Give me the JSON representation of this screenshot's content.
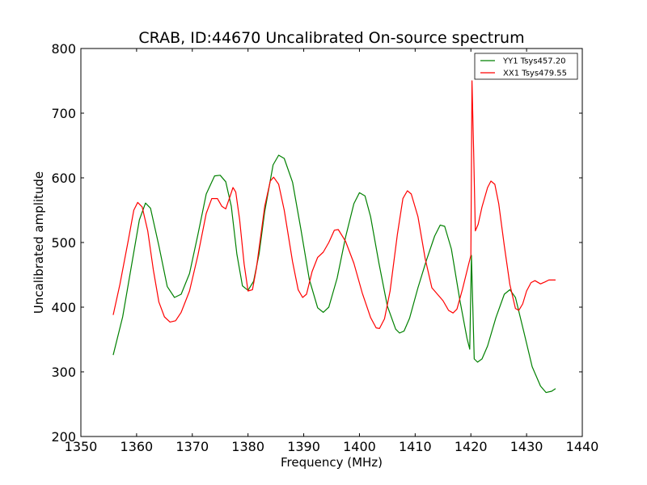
{
  "chart_data": {
    "type": "line",
    "title": "CRAB, ID:44670 Uncalibrated On-source spectrum",
    "xlabel": "Frequency (MHz)",
    "ylabel": "Uncalibrated amplitude",
    "xlim": [
      1350,
      1440
    ],
    "ylim": [
      200,
      800
    ],
    "xticks": [
      "1350",
      "1360",
      "1370",
      "1380",
      "1390",
      "1400",
      "1410",
      "1420",
      "1430",
      "1440"
    ],
    "yticks": [
      "200",
      "300",
      "400",
      "500",
      "600",
      "700",
      "800"
    ],
    "grid": false,
    "legend_position": "top-right",
    "series": [
      {
        "name": "YY1 Tsys457.20",
        "color": "#008000",
        "points": [
          [
            1355.8,
            326
          ],
          [
            1357.5,
            385
          ],
          [
            1359.0,
            460
          ],
          [
            1360.5,
            535
          ],
          [
            1361.6,
            561
          ],
          [
            1362.5,
            553
          ],
          [
            1364.0,
            495
          ],
          [
            1365.5,
            432
          ],
          [
            1366.8,
            415
          ],
          [
            1368.0,
            420
          ],
          [
            1369.5,
            452
          ],
          [
            1371.0,
            512
          ],
          [
            1372.5,
            575
          ],
          [
            1374.0,
            603
          ],
          [
            1375.0,
            604
          ],
          [
            1376.0,
            594
          ],
          [
            1377.0,
            556
          ],
          [
            1378.0,
            482
          ],
          [
            1379.0,
            433
          ],
          [
            1380.0,
            426
          ],
          [
            1381.0,
            440
          ],
          [
            1382.0,
            483
          ],
          [
            1383.0,
            548
          ],
          [
            1384.5,
            620
          ],
          [
            1385.5,
            635
          ],
          [
            1386.5,
            630
          ],
          [
            1388.0,
            593
          ],
          [
            1389.5,
            520
          ],
          [
            1391.0,
            443
          ],
          [
            1392.5,
            399
          ],
          [
            1393.5,
            392
          ],
          [
            1394.5,
            400
          ],
          [
            1396.0,
            445
          ],
          [
            1397.5,
            508
          ],
          [
            1399.0,
            560
          ],
          [
            1400.0,
            577
          ],
          [
            1401.0,
            572
          ],
          [
            1402.0,
            540
          ],
          [
            1403.5,
            468
          ],
          [
            1405.0,
            402
          ],
          [
            1406.5,
            366
          ],
          [
            1407.2,
            360
          ],
          [
            1408.0,
            363
          ],
          [
            1409.0,
            383
          ],
          [
            1410.5,
            430
          ],
          [
            1412.0,
            472
          ],
          [
            1413.5,
            510
          ],
          [
            1414.5,
            527
          ],
          [
            1415.3,
            525
          ],
          [
            1416.5,
            490
          ],
          [
            1418.0,
            412
          ],
          [
            1419.3,
            352
          ],
          [
            1419.8,
            335
          ],
          [
            1420.1,
            480
          ],
          [
            1420.6,
            320
          ],
          [
            1421.2,
            315
          ],
          [
            1422.0,
            320
          ],
          [
            1423.0,
            340
          ],
          [
            1424.5,
            384
          ],
          [
            1426.0,
            420
          ],
          [
            1427.0,
            427
          ],
          [
            1428.0,
            415
          ],
          [
            1429.5,
            362
          ],
          [
            1431.0,
            308
          ],
          [
            1432.5,
            278
          ],
          [
            1433.5,
            268
          ],
          [
            1434.5,
            270
          ],
          [
            1435.2,
            274
          ]
        ]
      },
      {
        "name": "XX1 Tsys479.55",
        "color": "#ff0000",
        "points": [
          [
            1355.8,
            388
          ],
          [
            1357.0,
            435
          ],
          [
            1358.5,
            503
          ],
          [
            1359.5,
            550
          ],
          [
            1360.2,
            562
          ],
          [
            1361.0,
            555
          ],
          [
            1362.0,
            518
          ],
          [
            1363.0,
            458
          ],
          [
            1364.0,
            408
          ],
          [
            1365.0,
            385
          ],
          [
            1366.0,
            377
          ],
          [
            1367.0,
            379
          ],
          [
            1368.0,
            392
          ],
          [
            1369.5,
            425
          ],
          [
            1371.0,
            480
          ],
          [
            1372.5,
            545
          ],
          [
            1373.5,
            568
          ],
          [
            1374.5,
            568
          ],
          [
            1375.3,
            556
          ],
          [
            1376.0,
            552
          ],
          [
            1376.8,
            572
          ],
          [
            1377.3,
            585
          ],
          [
            1377.8,
            578
          ],
          [
            1378.5,
            535
          ],
          [
            1379.3,
            467
          ],
          [
            1380.0,
            425
          ],
          [
            1380.8,
            427
          ],
          [
            1381.5,
            460
          ],
          [
            1383.0,
            556
          ],
          [
            1384.0,
            595
          ],
          [
            1384.6,
            601
          ],
          [
            1385.5,
            590
          ],
          [
            1386.5,
            550
          ],
          [
            1388.0,
            470
          ],
          [
            1389.0,
            427
          ],
          [
            1389.8,
            415
          ],
          [
            1390.5,
            420
          ],
          [
            1391.5,
            455
          ],
          [
            1392.5,
            477
          ],
          [
            1393.5,
            485
          ],
          [
            1394.5,
            500
          ],
          [
            1395.5,
            519
          ],
          [
            1396.2,
            520
          ],
          [
            1397.5,
            502
          ],
          [
            1399.0,
            468
          ],
          [
            1400.5,
            422
          ],
          [
            1402.0,
            384
          ],
          [
            1403.0,
            368
          ],
          [
            1403.6,
            367
          ],
          [
            1404.5,
            382
          ],
          [
            1405.5,
            425
          ],
          [
            1406.8,
            512
          ],
          [
            1407.8,
            568
          ],
          [
            1408.6,
            580
          ],
          [
            1409.3,
            575
          ],
          [
            1410.5,
            540
          ],
          [
            1411.8,
            475
          ],
          [
            1413.0,
            430
          ],
          [
            1414.0,
            420
          ],
          [
            1415.0,
            410
          ],
          [
            1416.0,
            395
          ],
          [
            1416.8,
            391
          ],
          [
            1417.5,
            397
          ],
          [
            1418.5,
            428
          ],
          [
            1419.5,
            463
          ],
          [
            1420.0,
            480
          ],
          [
            1420.2,
            750
          ],
          [
            1420.5,
            640
          ],
          [
            1420.8,
            518
          ],
          [
            1421.3,
            528
          ],
          [
            1422.0,
            555
          ],
          [
            1423.0,
            585
          ],
          [
            1423.6,
            595
          ],
          [
            1424.3,
            590
          ],
          [
            1425.0,
            560
          ],
          [
            1426.0,
            495
          ],
          [
            1427.0,
            435
          ],
          [
            1428.0,
            398
          ],
          [
            1428.6,
            395
          ],
          [
            1429.3,
            405
          ],
          [
            1430.0,
            425
          ],
          [
            1430.8,
            438
          ],
          [
            1431.5,
            441
          ],
          [
            1432.5,
            436
          ],
          [
            1433.3,
            439
          ],
          [
            1434.0,
            442
          ],
          [
            1435.2,
            442
          ]
        ]
      }
    ]
  }
}
